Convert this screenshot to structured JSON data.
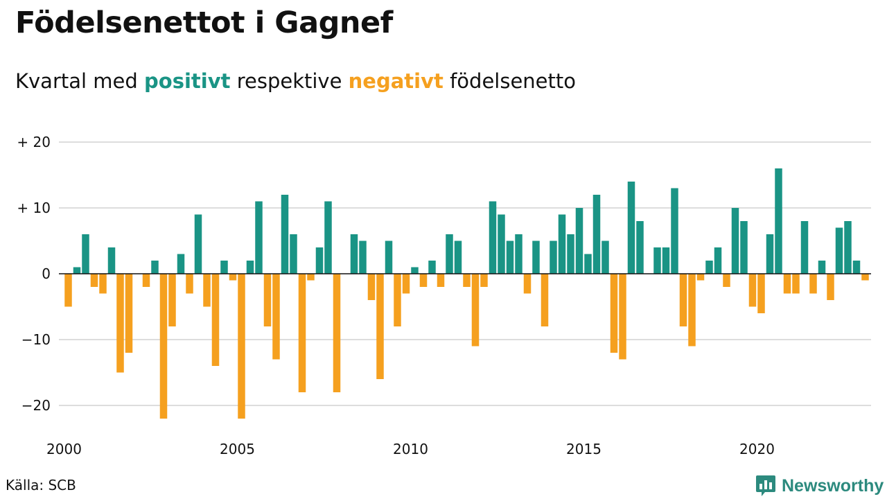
{
  "title": "Födelsenettot i Gagnef",
  "subtitle": {
    "part1": "Kvartal med ",
    "positive": "positivt",
    "part2": " respektive ",
    "negative": "negativt",
    "part3": " födelsenetto"
  },
  "source": "Källa: SCB",
  "brand": {
    "name": "Newsworthy",
    "icon": "bar-chart-speech-bubble-icon"
  },
  "colors": {
    "positive": "#1a9485",
    "negative": "#f5a01f",
    "grid": "#dddddd",
    "zero": "#111111"
  },
  "chart_data": {
    "type": "bar",
    "x_start": "2000 Q1",
    "x_tick_labels": [
      "2000",
      "2005",
      "2010",
      "2015",
      "2020"
    ],
    "y_tick_labels": [
      "+ 20",
      "+ 10",
      "0",
      "−10",
      "−20"
    ],
    "y_ticks": [
      20,
      10,
      0,
      -10,
      -20
    ],
    "ylim": [
      -24,
      20
    ],
    "grid": true,
    "values": [
      -5,
      1,
      6,
      -2,
      -3,
      4,
      -15,
      -12,
      0,
      -2,
      2,
      -22,
      -8,
      3,
      -3,
      9,
      -5,
      -14,
      2,
      -1,
      -22,
      2,
      11,
      -8,
      -13,
      12,
      6,
      -18,
      -1,
      4,
      11,
      -18,
      0,
      6,
      5,
      -4,
      -16,
      5,
      -8,
      -3,
      1,
      -2,
      2,
      -2,
      6,
      5,
      -2,
      -11,
      -2,
      11,
      9,
      5,
      6,
      -3,
      5,
      -8,
      5,
      9,
      6,
      10,
      3,
      12,
      5,
      -12,
      -13,
      14,
      8,
      0,
      4,
      4,
      13,
      -8,
      -11,
      -1,
      2,
      4,
      -2,
      10,
      8,
      -5,
      -6,
      6,
      16,
      -3,
      -3,
      8,
      -3,
      2,
      -4,
      7,
      8,
      2,
      -1
    ]
  }
}
